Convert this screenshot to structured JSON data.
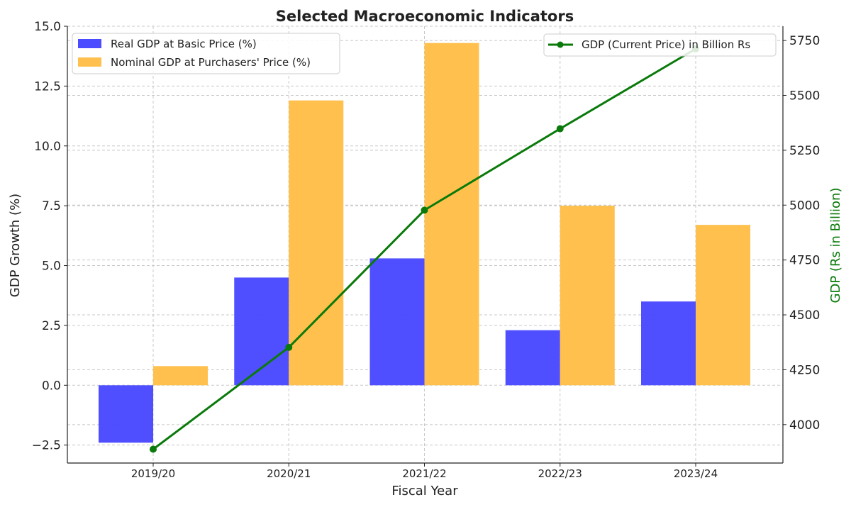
{
  "chart_data": {
    "type": "bar",
    "title": "Selected Macroeconomic Indicators",
    "xlabel": "Fiscal Year",
    "ylabel": "GDP Growth (%)",
    "y2label": "GDP (Rs in Billion)",
    "categories": [
      "2019/20",
      "2020/21",
      "2021/22",
      "2022/23",
      "2023/24"
    ],
    "ylim": [
      -3.25,
      15.0
    ],
    "y2lim": [
      3825,
      5815
    ],
    "yticks": [
      "−2.5",
      "0.0",
      "2.5",
      "5.0",
      "7.5",
      "10.0",
      "12.5",
      "15.0"
    ],
    "y2ticks": [
      "4000",
      "4250",
      "4500",
      "4750",
      "5000",
      "5250",
      "5500",
      "5750"
    ],
    "grid": true,
    "series": [
      {
        "name": "Real GDP at Basic Price (%)",
        "axis": "left",
        "type": "bar",
        "color": "#4b4bff",
        "values": [
          -2.4,
          4.5,
          5.3,
          2.3,
          3.5
        ]
      },
      {
        "name": "Nominal GDP at Purchasers' Price (%)",
        "axis": "left",
        "type": "bar",
        "color": "#ffc04d",
        "values": [
          0.8,
          11.9,
          14.3,
          7.5,
          6.7
        ]
      },
      {
        "name": "GDP (Current Price) in Billion Rs",
        "axis": "right",
        "type": "line",
        "color": "#0a7a0a",
        "values": [
          3888,
          4352,
          4977,
          5348,
          5712
        ]
      }
    ],
    "legend_left_placement": "top-left",
    "legend_right_placement": "top-right",
    "colors": {
      "right_axis_label": "#0a7a0a"
    }
  }
}
